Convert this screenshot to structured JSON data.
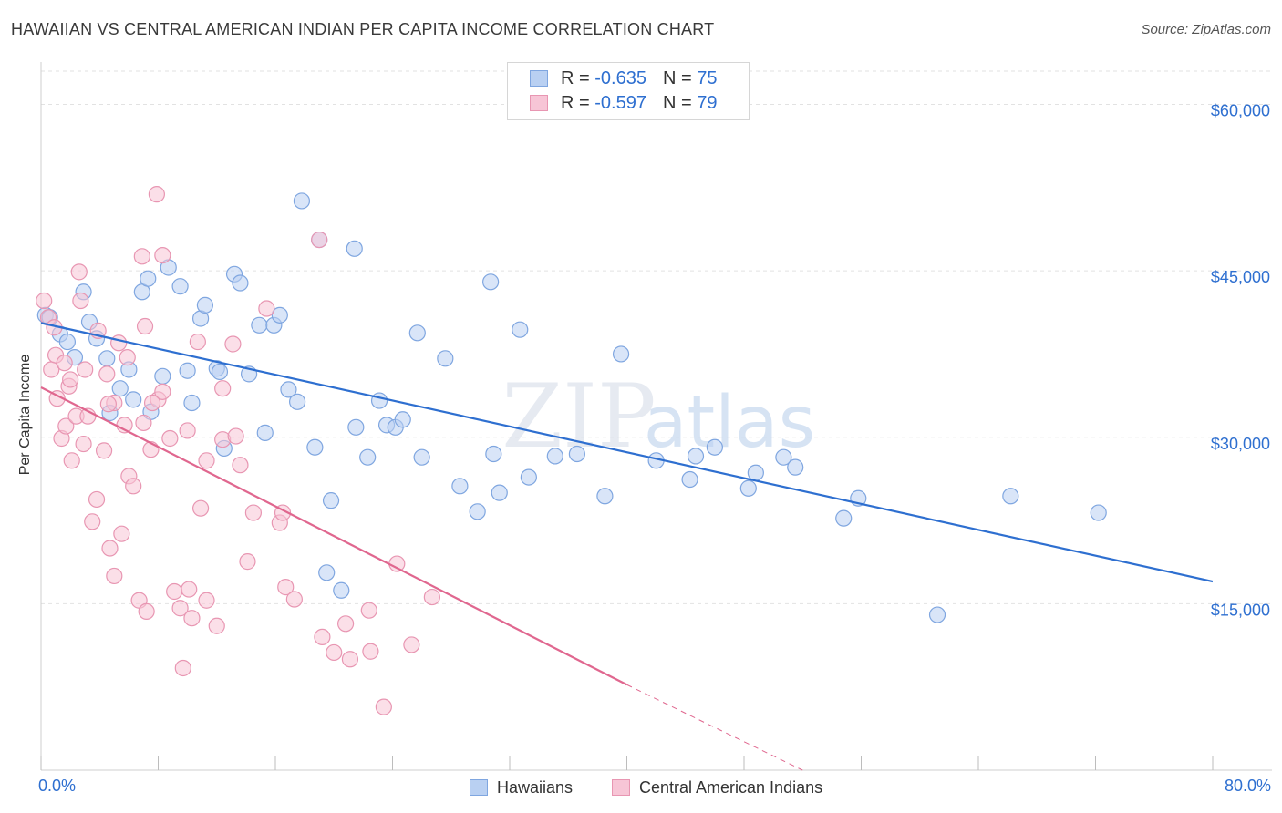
{
  "header": {
    "title": "HAWAIIAN VS CENTRAL AMERICAN INDIAN PER CAPITA INCOME CORRELATION CHART",
    "source": "Source: ZipAtlas.com"
  },
  "colors": {
    "blue": "#2e6fd0",
    "blue_fill": "#b9d0f2",
    "pink": "#e0678f",
    "pink_fill": "#f7c5d6",
    "grid": "#e2e2e2"
  },
  "legend": {
    "rows": [
      {
        "r_label": "R =",
        "r_value": "-0.635",
        "n_label": "N =",
        "n_value": "75"
      },
      {
        "r_label": "R =",
        "r_value": "-0.597",
        "n_label": "N =",
        "n_value": "79"
      }
    ]
  },
  "chart_data": {
    "type": "scatter",
    "ylabel": "Per Capita Income",
    "xlim": [
      0,
      80
    ],
    "ylim": [
      0,
      63000
    ],
    "x_tick_labels": [
      "0.0%",
      "80.0%"
    ],
    "y_ticks": [
      {
        "value": 15000,
        "label": "$15,000"
      },
      {
        "value": 30000,
        "label": "$30,000"
      },
      {
        "value": 45000,
        "label": "$45,000"
      },
      {
        "value": 60000,
        "label": "$60,000"
      }
    ],
    "grid": true,
    "legend_position": "top-center",
    "watermark": "ZIPatlas",
    "series": [
      {
        "name": "Hawaiians",
        "color": "#2e6fd0",
        "points": [
          [
            0.3,
            41000
          ],
          [
            0.6,
            40800
          ],
          [
            1.3,
            39300
          ],
          [
            1.8,
            38600
          ],
          [
            2.3,
            37200
          ],
          [
            2.9,
            43100
          ],
          [
            3.3,
            40400
          ],
          [
            3.8,
            38900
          ],
          [
            4.5,
            37100
          ],
          [
            4.7,
            32200
          ],
          [
            5.4,
            34400
          ],
          [
            6.0,
            36100
          ],
          [
            6.3,
            33400
          ],
          [
            6.9,
            43100
          ],
          [
            7.3,
            44300
          ],
          [
            7.5,
            32300
          ],
          [
            8.3,
            35500
          ],
          [
            8.7,
            45300
          ],
          [
            9.5,
            43600
          ],
          [
            10.0,
            36000
          ],
          [
            10.3,
            33100
          ],
          [
            10.9,
            40700
          ],
          [
            11.2,
            41900
          ],
          [
            12.0,
            36200
          ],
          [
            12.2,
            35900
          ],
          [
            12.5,
            29000
          ],
          [
            13.2,
            44700
          ],
          [
            13.6,
            43900
          ],
          [
            14.2,
            35700
          ],
          [
            14.9,
            40100
          ],
          [
            15.3,
            30400
          ],
          [
            15.9,
            40100
          ],
          [
            16.3,
            41000
          ],
          [
            16.9,
            34300
          ],
          [
            17.5,
            33200
          ],
          [
            17.8,
            51300
          ],
          [
            18.7,
            29100
          ],
          [
            19.0,
            47800
          ],
          [
            19.8,
            24300
          ],
          [
            20.5,
            16200
          ],
          [
            21.4,
            47000
          ],
          [
            21.5,
            30900
          ],
          [
            22.3,
            28200
          ],
          [
            23.1,
            33300
          ],
          [
            23.6,
            31100
          ],
          [
            24.2,
            30900
          ],
          [
            24.7,
            31600
          ],
          [
            25.7,
            39400
          ],
          [
            26.0,
            28200
          ],
          [
            27.6,
            37100
          ],
          [
            28.6,
            25600
          ],
          [
            29.8,
            23300
          ],
          [
            30.7,
            44000
          ],
          [
            30.9,
            28500
          ],
          [
            31.3,
            25000
          ],
          [
            32.7,
            39700
          ],
          [
            33.3,
            26400
          ],
          [
            35.1,
            28300
          ],
          [
            36.6,
            28500
          ],
          [
            38.5,
            24700
          ],
          [
            39.6,
            37500
          ],
          [
            42.0,
            27900
          ],
          [
            44.3,
            26200
          ],
          [
            44.7,
            28300
          ],
          [
            46.0,
            29100
          ],
          [
            48.3,
            25400
          ],
          [
            48.8,
            26800
          ],
          [
            50.7,
            28200
          ],
          [
            51.5,
            27300
          ],
          [
            54.8,
            22700
          ],
          [
            55.8,
            24500
          ],
          [
            61.2,
            14000
          ],
          [
            66.2,
            24700
          ],
          [
            72.2,
            23200
          ],
          [
            19.5,
            17800
          ]
        ]
      },
      {
        "name": "Central American Indians",
        "color": "#e0678f",
        "points": [
          [
            0.2,
            42300
          ],
          [
            0.5,
            40800
          ],
          [
            0.7,
            36100
          ],
          [
            1.0,
            37400
          ],
          [
            1.1,
            33500
          ],
          [
            1.4,
            29900
          ],
          [
            1.6,
            36700
          ],
          [
            1.7,
            31000
          ],
          [
            1.9,
            34600
          ],
          [
            2.1,
            27900
          ],
          [
            2.4,
            31900
          ],
          [
            2.6,
            44900
          ],
          [
            2.7,
            42300
          ],
          [
            2.9,
            29400
          ],
          [
            3.0,
            36100
          ],
          [
            3.2,
            31900
          ],
          [
            3.5,
            22400
          ],
          [
            3.8,
            24400
          ],
          [
            3.9,
            39600
          ],
          [
            4.3,
            28800
          ],
          [
            4.5,
            35700
          ],
          [
            4.7,
            20000
          ],
          [
            5.0,
            33100
          ],
          [
            5.0,
            17500
          ],
          [
            5.3,
            38500
          ],
          [
            5.5,
            21300
          ],
          [
            5.7,
            31100
          ],
          [
            5.9,
            37200
          ],
          [
            6.0,
            26500
          ],
          [
            6.3,
            25600
          ],
          [
            6.7,
            15300
          ],
          [
            6.9,
            46300
          ],
          [
            7.0,
            31300
          ],
          [
            7.2,
            14300
          ],
          [
            7.5,
            28900
          ],
          [
            7.9,
            51900
          ],
          [
            8.3,
            46400
          ],
          [
            8.0,
            33400
          ],
          [
            8.3,
            34100
          ],
          [
            8.8,
            29900
          ],
          [
            9.1,
            16100
          ],
          [
            9.5,
            14600
          ],
          [
            9.7,
            9200
          ],
          [
            10.0,
            30600
          ],
          [
            10.1,
            16300
          ],
          [
            10.3,
            13700
          ],
          [
            10.9,
            23600
          ],
          [
            11.3,
            15300
          ],
          [
            11.3,
            27900
          ],
          [
            12.0,
            13000
          ],
          [
            12.4,
            29800
          ],
          [
            13.1,
            38400
          ],
          [
            13.3,
            30100
          ],
          [
            13.6,
            27500
          ],
          [
            14.1,
            18800
          ],
          [
            14.5,
            23200
          ],
          [
            15.4,
            41600
          ],
          [
            16.3,
            22300
          ],
          [
            16.5,
            23200
          ],
          [
            16.7,
            16500
          ],
          [
            17.3,
            15400
          ],
          [
            19.0,
            47800
          ],
          [
            19.2,
            12000
          ],
          [
            20.0,
            10600
          ],
          [
            20.8,
            13200
          ],
          [
            21.1,
            10000
          ],
          [
            22.4,
            14400
          ],
          [
            22.5,
            10700
          ],
          [
            23.4,
            5700
          ],
          [
            24.3,
            18600
          ],
          [
            25.3,
            11300
          ],
          [
            26.7,
            15600
          ],
          [
            4.6,
            33000
          ],
          [
            7.6,
            33100
          ],
          [
            10.7,
            38600
          ],
          [
            12.4,
            34400
          ],
          [
            2.0,
            35200
          ],
          [
            7.1,
            40000
          ],
          [
            0.9,
            39900
          ]
        ]
      }
    ],
    "trendlines": [
      {
        "series": "Hawaiians",
        "x1": 0,
        "y1": 40300,
        "x2": 80,
        "y2": 17000
      },
      {
        "series": "Central American Indians",
        "x1": 0,
        "y1": 34500,
        "x2": 40,
        "y2": 7700
      },
      {
        "series": "Central American Indians",
        "x1": 40,
        "y1": 7700,
        "x2": 52,
        "y2": 0,
        "dashed": true
      }
    ]
  }
}
